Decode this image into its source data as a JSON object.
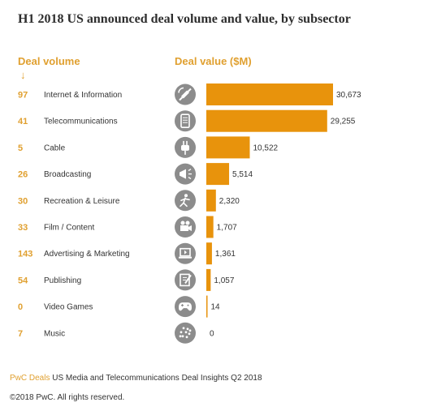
{
  "chart_data": {
    "type": "bar",
    "orientation": "horizontal",
    "title": "H1 2018 US announced deal volume and value, by subsector",
    "volume_header": "Deal volume",
    "value_header": "Deal value ($M)",
    "categories": [
      "Internet & Information",
      "Telecommunications",
      "Cable",
      "Broadcasting",
      "Recreation & Leisure",
      "Film / Content",
      "Advertising & Marketing",
      "Publishing",
      "Video Games",
      "Music"
    ],
    "volumes": [
      "97",
      "41",
      "5",
      "26",
      "30",
      "33",
      "143",
      "54",
      "0",
      "7"
    ],
    "values": [
      30673,
      29255,
      10522,
      5514,
      2320,
      1707,
      1361,
      1057,
      14,
      0
    ],
    "value_labels": [
      "30,673",
      "29,255",
      "10,522",
      "5,514",
      "2,320",
      "1,707",
      "1,361",
      "1,057",
      "14",
      "0"
    ],
    "icons": [
      "satellite-icon",
      "mobile-phone-icon",
      "power-plug-icon",
      "megaphone-icon",
      "running-person-icon",
      "film-projector-icon",
      "laptop-icon",
      "writing-pad-icon",
      "game-controller-icon",
      "music-dots-icon"
    ],
    "xlim": [
      0,
      30673
    ],
    "bar_color": "#e8930c",
    "icon_color": "#8c8c8c",
    "accent_color": "#e0a030"
  },
  "footer": {
    "brand": "PwC Deals",
    "source_rest": " US Media and Telecommunications Deal Insights Q2 2018",
    "copyright": "©2018 PwC. All rights reserved."
  }
}
